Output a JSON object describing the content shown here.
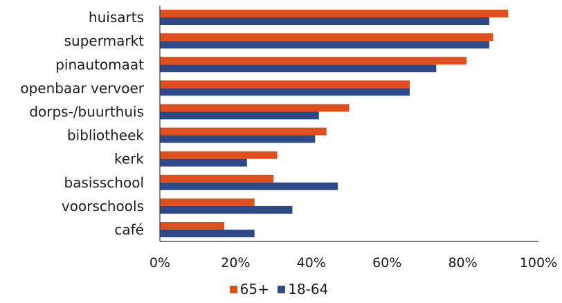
{
  "chart_data": {
    "type": "bar",
    "orientation": "horizontal",
    "categories": [
      "huisarts",
      "supermarkt",
      "pinautomaat",
      "openbaar vervoer",
      "dorps-/buurthuis",
      "bibliotheek",
      "kerk",
      "basisschool",
      "voorschools",
      "café"
    ],
    "series": [
      {
        "name": "65+",
        "color": "#e0501f",
        "values": [
          92,
          88,
          81,
          66,
          50,
          44,
          31,
          30,
          25,
          17
        ]
      },
      {
        "name": "18-64",
        "color": "#2e4a86",
        "values": [
          87,
          87,
          73,
          66,
          42,
          41,
          23,
          47,
          35,
          25
        ]
      }
    ],
    "x_ticks": [
      "0%",
      "20%",
      "40%",
      "60%",
      "80%",
      "100%"
    ],
    "xlim": [
      0,
      100
    ],
    "legend_position": "bottom",
    "grid": false
  }
}
